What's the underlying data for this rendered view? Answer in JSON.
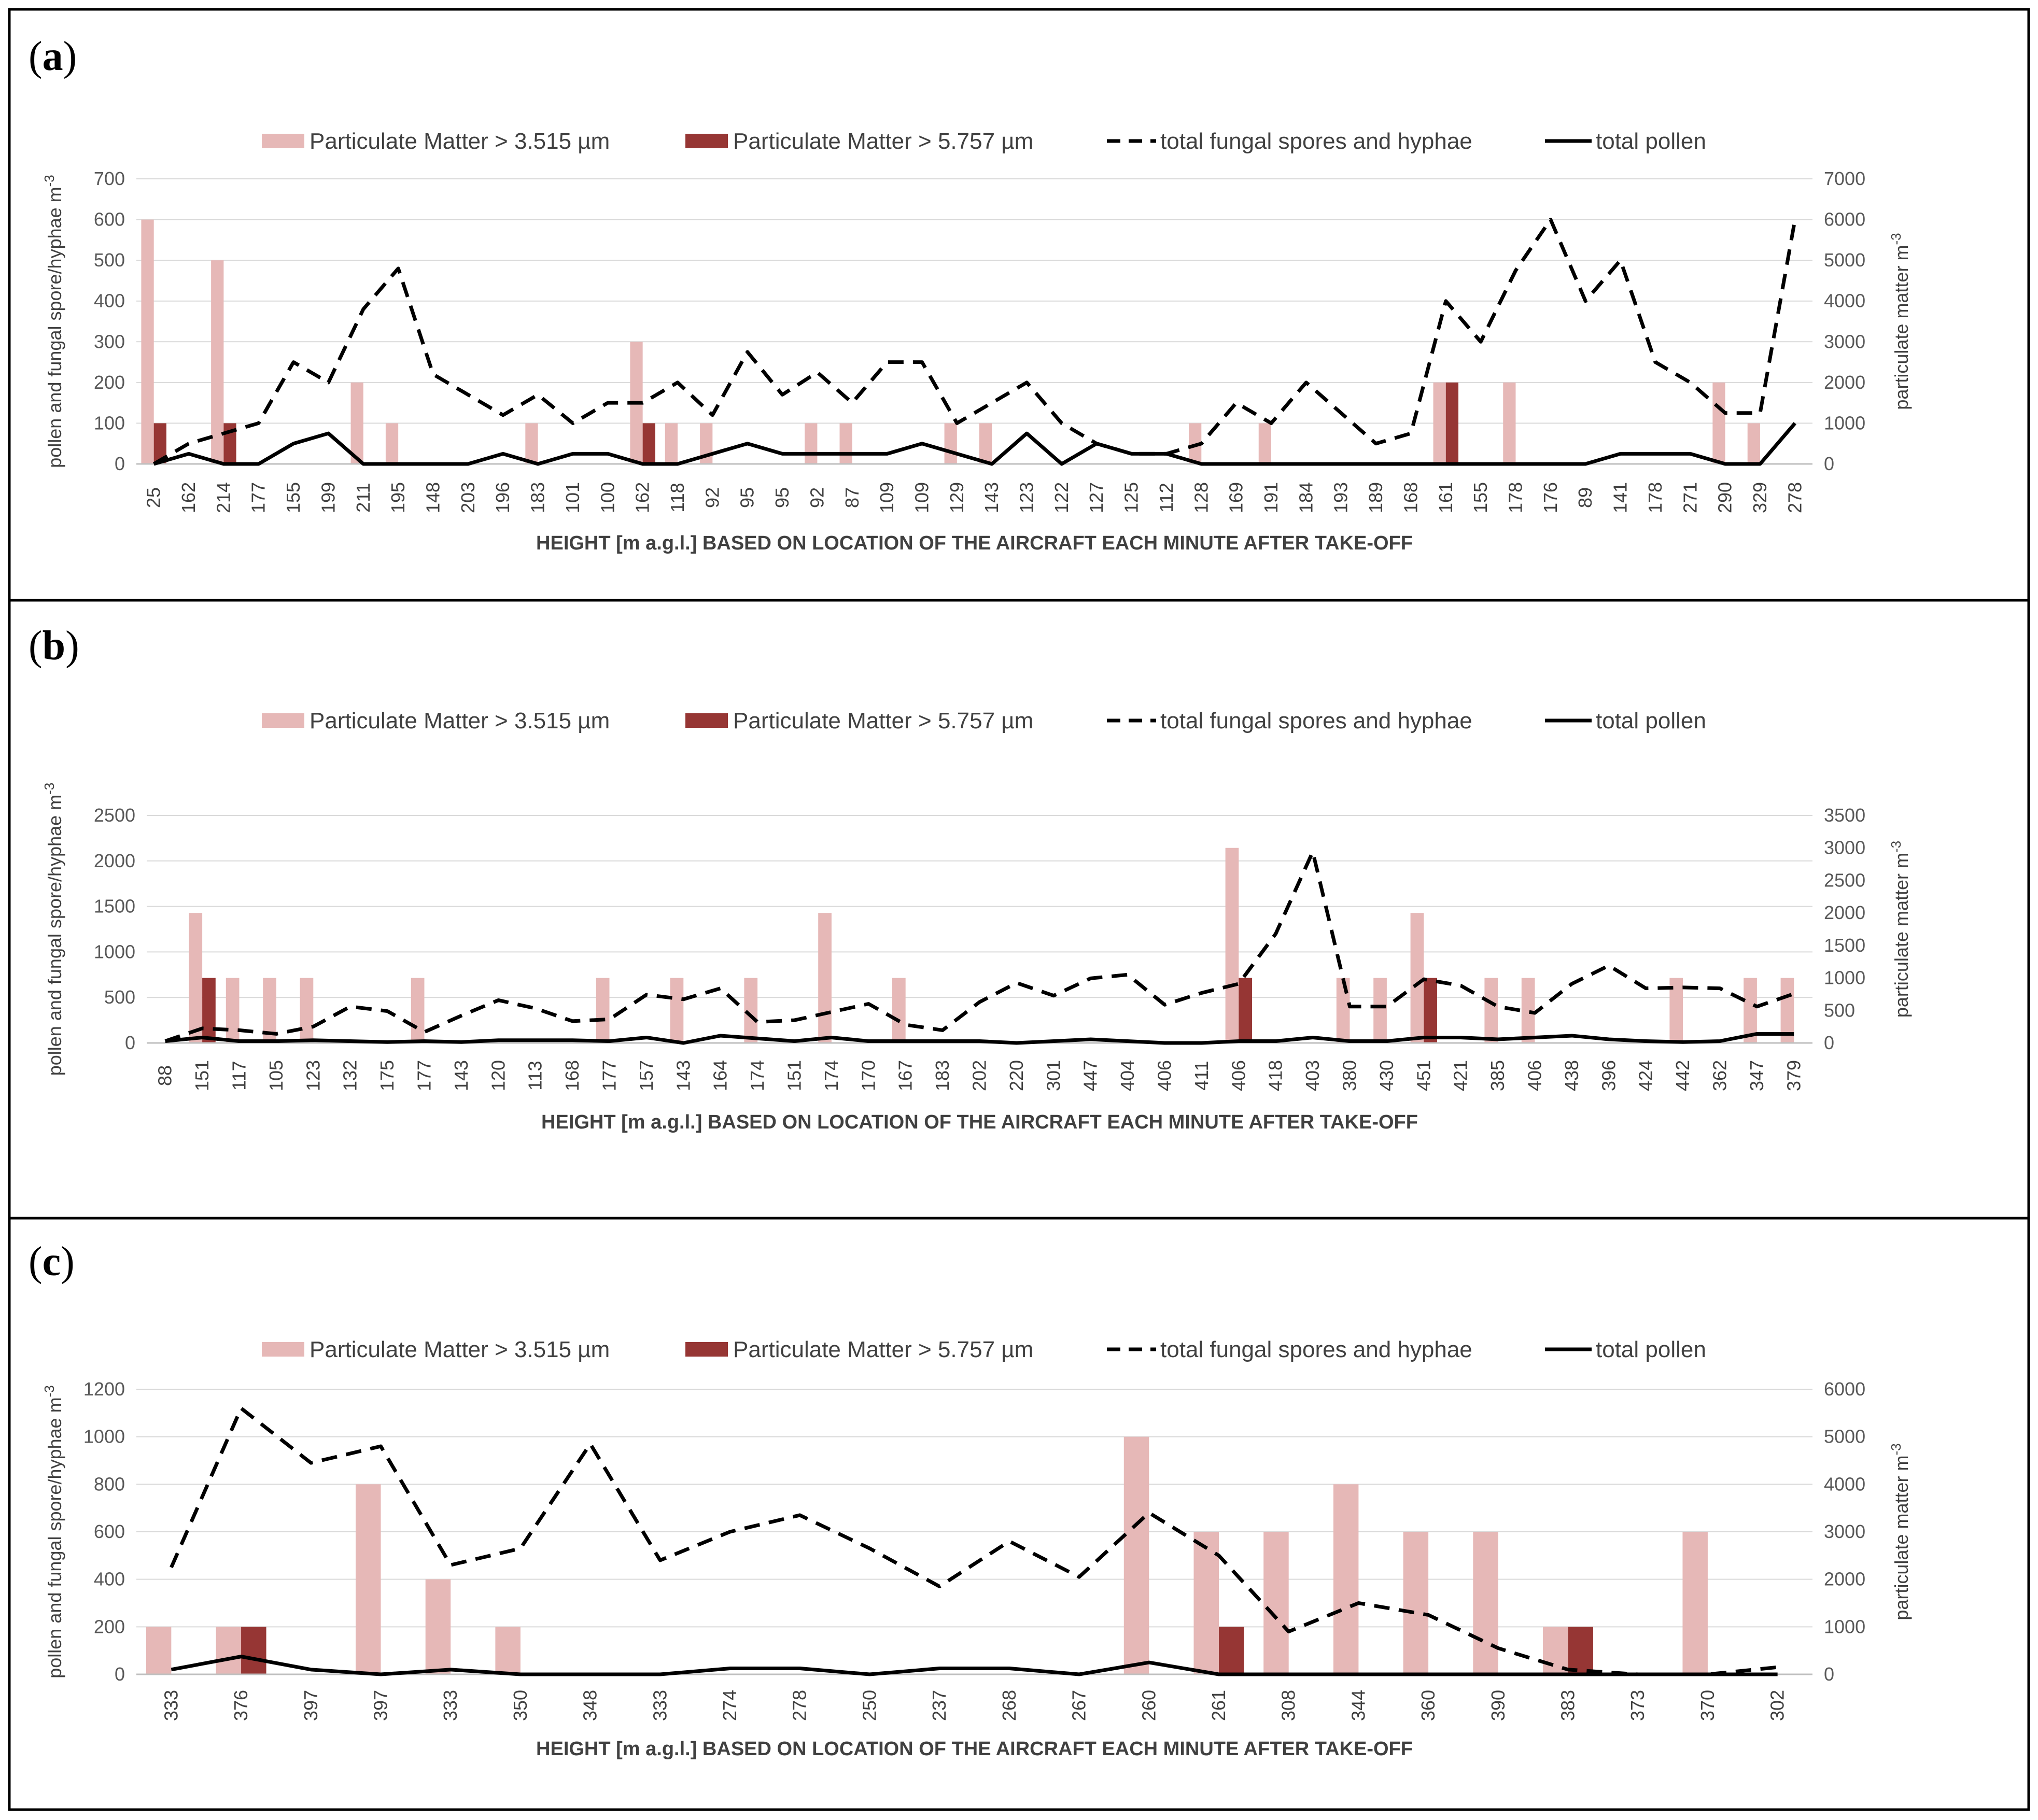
{
  "figure": {
    "colors": {
      "pm_small": "#e6b8b7",
      "pm_large": "#963634",
      "fungal": "#000000",
      "pollen": "#000000"
    }
  },
  "chart_data": [
    {
      "type": "bar+line",
      "panel_label": "a",
      "legend": [
        "Particulate Matter > 3.515 µm",
        "Particulate Matter > 5.757 µm",
        "total fungal spores and hyphae",
        "total pollen"
      ],
      "xlabel": "HEIGHT [m a.g.l.] BASED ON LOCATION OF THE AIRCRAFT EACH MINUTE AFTER TAKE-OFF",
      "ylabel_left": "pollen and fungal spore/hyphae m",
      "ylabel_right": "particulate matter m",
      "ylabel_sup": "-3",
      "ylim_left": [
        0,
        700
      ],
      "yticks_left": [
        0,
        100,
        200,
        300,
        400,
        500,
        600,
        700
      ],
      "ylim_right": [
        0,
        7000
      ],
      "yticks_right": [
        0,
        1000,
        2000,
        3000,
        4000,
        5000,
        6000,
        7000
      ],
      "categories": [
        "25",
        "162",
        "214",
        "177",
        "155",
        "199",
        "211",
        "195",
        "148",
        "203",
        "196",
        "183",
        "101",
        "100",
        "162",
        "118",
        "92",
        "95",
        "95",
        "92",
        "87",
        "109",
        "109",
        "129",
        "143",
        "123",
        "122",
        "127",
        "125",
        "112",
        "128",
        "169",
        "191",
        "184",
        "193",
        "189",
        "168",
        "161",
        "155",
        "178",
        "176",
        "89",
        "141",
        "178",
        "271",
        "290",
        "329",
        "278"
      ],
      "series": [
        {
          "name": "Particulate Matter > 3.515 µm",
          "axis": "right",
          "kind": "bar",
          "color_key": "pm_small",
          "values": [
            6000,
            0,
            5000,
            0,
            0,
            0,
            2000,
            1000,
            0,
            0,
            0,
            1000,
            0,
            0,
            3000,
            1000,
            1000,
            0,
            0,
            1000,
            1000,
            0,
            0,
            1000,
            1000,
            0,
            0,
            0,
            0,
            0,
            1000,
            0,
            1000,
            0,
            0,
            0,
            0,
            2000,
            0,
            2000,
            0,
            0,
            0,
            0,
            0,
            2000,
            1000,
            0
          ]
        },
        {
          "name": "Particulate Matter > 5.757 µm",
          "axis": "right",
          "kind": "bar",
          "color_key": "pm_large",
          "values": [
            1000,
            0,
            1000,
            0,
            0,
            0,
            0,
            0,
            0,
            0,
            0,
            0,
            0,
            0,
            1000,
            0,
            0,
            0,
            0,
            0,
            0,
            0,
            0,
            0,
            0,
            0,
            0,
            0,
            0,
            0,
            0,
            0,
            0,
            0,
            0,
            0,
            0,
            2000,
            0,
            0,
            0,
            0,
            0,
            0,
            0,
            0,
            0,
            0
          ]
        },
        {
          "name": "total fungal spores and hyphae",
          "axis": "left",
          "kind": "dashed-line",
          "color_key": "fungal",
          "values": [
            0,
            50,
            75,
            100,
            250,
            200,
            380,
            480,
            220,
            170,
            120,
            170,
            100,
            150,
            150,
            200,
            120,
            275,
            170,
            225,
            150,
            250,
            250,
            100,
            150,
            200,
            100,
            50,
            25,
            25,
            50,
            150,
            100,
            200,
            125,
            50,
            75,
            400,
            300,
            475,
            600,
            400,
            500,
            250,
            200,
            125,
            125,
            600
          ]
        },
        {
          "name": "total pollen",
          "axis": "left",
          "kind": "solid-line",
          "color_key": "pollen",
          "values": [
            0,
            25,
            0,
            0,
            50,
            75,
            0,
            0,
            0,
            0,
            25,
            0,
            25,
            25,
            0,
            0,
            25,
            50,
            25,
            25,
            25,
            25,
            50,
            25,
            0,
            75,
            0,
            50,
            25,
            25,
            0,
            0,
            0,
            0,
            0,
            0,
            0,
            0,
            0,
            0,
            0,
            0,
            25,
            25,
            25,
            0,
            0,
            100
          ]
        }
      ]
    },
    {
      "type": "bar+line",
      "panel_label": "b",
      "legend": [
        "Particulate Matter > 3.515 µm",
        "Particulate Matter > 5.757 µm",
        "total fungal spores and hyphae",
        "total pollen"
      ],
      "xlabel": "HEIGHT [m a.g.l.] BASED ON LOCATION OF THE AIRCRAFT EACH MINUTE AFTER TAKE-OFF",
      "ylabel_left": "pollen and fungal spore/hyphae m",
      "ylabel_right": "particulate matter m",
      "ylabel_sup": "-3",
      "ylim_left": [
        0,
        2500
      ],
      "yticks_left": [
        0,
        500,
        1000,
        1500,
        2000,
        2500
      ],
      "ylim_right": [
        0,
        3500
      ],
      "yticks_right": [
        0,
        500,
        1000,
        1500,
        2000,
        2500,
        3000,
        3500
      ],
      "categories": [
        "88",
        "151",
        "117",
        "105",
        "123",
        "132",
        "175",
        "177",
        "143",
        "120",
        "113",
        "168",
        "177",
        "157",
        "143",
        "164",
        "174",
        "151",
        "174",
        "170",
        "167",
        "183",
        "202",
        "220",
        "301",
        "447",
        "404",
        "406",
        "411",
        "406",
        "418",
        "403",
        "380",
        "430",
        "451",
        "421",
        "385",
        "406",
        "438",
        "396",
        "424",
        "442",
        "362",
        "347",
        "379"
      ],
      "series": [
        {
          "name": "Particulate Matter > 3.515 µm",
          "axis": "right",
          "kind": "bar",
          "color_key": "pm_small",
          "values": [
            0,
            2000,
            1000,
            1000,
            1000,
            0,
            0,
            1000,
            0,
            0,
            0,
            0,
            1000,
            0,
            1000,
            0,
            1000,
            0,
            2000,
            0,
            1000,
            0,
            0,
            0,
            0,
            0,
            0,
            0,
            0,
            3000,
            0,
            0,
            1000,
            1000,
            2000,
            0,
            1000,
            1000,
            0,
            0,
            0,
            1000,
            0,
            1000,
            1000
          ]
        },
        {
          "name": "Particulate Matter > 5.757 µm",
          "axis": "right",
          "kind": "bar",
          "color_key": "pm_large",
          "values": [
            0,
            1000,
            0,
            0,
            0,
            0,
            0,
            0,
            0,
            0,
            0,
            0,
            0,
            0,
            0,
            0,
            0,
            0,
            0,
            0,
            0,
            0,
            0,
            0,
            0,
            0,
            0,
            0,
            0,
            1000,
            0,
            0,
            0,
            0,
            1000,
            0,
            0,
            0,
            0,
            0,
            0,
            0,
            0,
            0,
            0
          ]
        },
        {
          "name": "total fungal spores and hyphae",
          "axis": "left",
          "kind": "dashed-line",
          "color_key": "fungal",
          "values": [
            20,
            160,
            140,
            100,
            180,
            400,
            350,
            120,
            300,
            470,
            380,
            240,
            260,
            530,
            480,
            600,
            230,
            250,
            340,
            430,
            200,
            140,
            450,
            660,
            520,
            710,
            750,
            420,
            550,
            650,
            1200,
            2100,
            400,
            400,
            700,
            630,
            400,
            330,
            650,
            850,
            600,
            610,
            600,
            400,
            540
          ]
        },
        {
          "name": "total pollen",
          "axis": "left",
          "kind": "solid-line",
          "color_key": "pollen",
          "values": [
            20,
            60,
            20,
            20,
            30,
            20,
            10,
            20,
            10,
            30,
            30,
            30,
            20,
            60,
            0,
            80,
            50,
            20,
            60,
            20,
            20,
            20,
            20,
            0,
            20,
            40,
            20,
            0,
            0,
            20,
            20,
            60,
            20,
            20,
            60,
            60,
            40,
            60,
            80,
            40,
            20,
            10,
            20,
            100,
            100
          ]
        }
      ]
    },
    {
      "type": "bar+line",
      "panel_label": "c",
      "legend": [
        "Particulate Matter > 3.515 µm",
        "Particulate Matter > 5.757 µm",
        "total fungal spores and hyphae",
        "total pollen"
      ],
      "xlabel": "HEIGHT [m a.g.l.] BASED ON LOCATION OF THE AIRCRAFT EACH MINUTE AFTER TAKE-OFF",
      "ylabel_left": "pollen and fungal spore/hyphae m",
      "ylabel_right": "particulate matter m",
      "ylabel_sup": "-3",
      "ylim_left": [
        0,
        1200
      ],
      "yticks_left": [
        0,
        200,
        400,
        600,
        800,
        1000,
        1200
      ],
      "ylim_right": [
        0,
        6000
      ],
      "yticks_right": [
        0,
        1000,
        2000,
        3000,
        4000,
        5000,
        6000
      ],
      "categories": [
        "333",
        "376",
        "397",
        "397",
        "333",
        "350",
        "348",
        "333",
        "274",
        "278",
        "250",
        "237",
        "268",
        "267",
        "260",
        "261",
        "308",
        "344",
        "360",
        "390",
        "383",
        "373",
        "370",
        "302"
      ],
      "series": [
        {
          "name": "Particulate Matter > 3.515 µm",
          "axis": "right",
          "kind": "bar",
          "color_key": "pm_small",
          "values": [
            1000,
            1000,
            0,
            4000,
            2000,
            1000,
            0,
            0,
            0,
            0,
            0,
            0,
            0,
            0,
            5000,
            3000,
            3000,
            4000,
            3000,
            3000,
            1000,
            0,
            3000,
            0
          ]
        },
        {
          "name": "Particulate Matter > 5.757 µm",
          "axis": "right",
          "kind": "bar",
          "color_key": "pm_large",
          "values": [
            0,
            1000,
            0,
            0,
            0,
            0,
            0,
            0,
            0,
            0,
            0,
            0,
            0,
            0,
            0,
            1000,
            0,
            0,
            0,
            0,
            1000,
            0,
            0,
            0
          ]
        },
        {
          "name": "total fungal spores and hyphae",
          "axis": "left",
          "kind": "dashed-line",
          "color_key": "fungal",
          "values": [
            450,
            1120,
            890,
            960,
            460,
            530,
            970,
            480,
            600,
            670,
            530,
            370,
            560,
            410,
            680,
            500,
            180,
            300,
            250,
            110,
            20,
            0,
            0,
            30
          ]
        },
        {
          "name": "total pollen",
          "axis": "left",
          "kind": "solid-line",
          "color_key": "pollen",
          "values": [
            20,
            75,
            20,
            0,
            20,
            0,
            0,
            0,
            25,
            25,
            0,
            25,
            25,
            0,
            50,
            0,
            0,
            0,
            0,
            0,
            0,
            0,
            0,
            0
          ]
        }
      ]
    }
  ]
}
